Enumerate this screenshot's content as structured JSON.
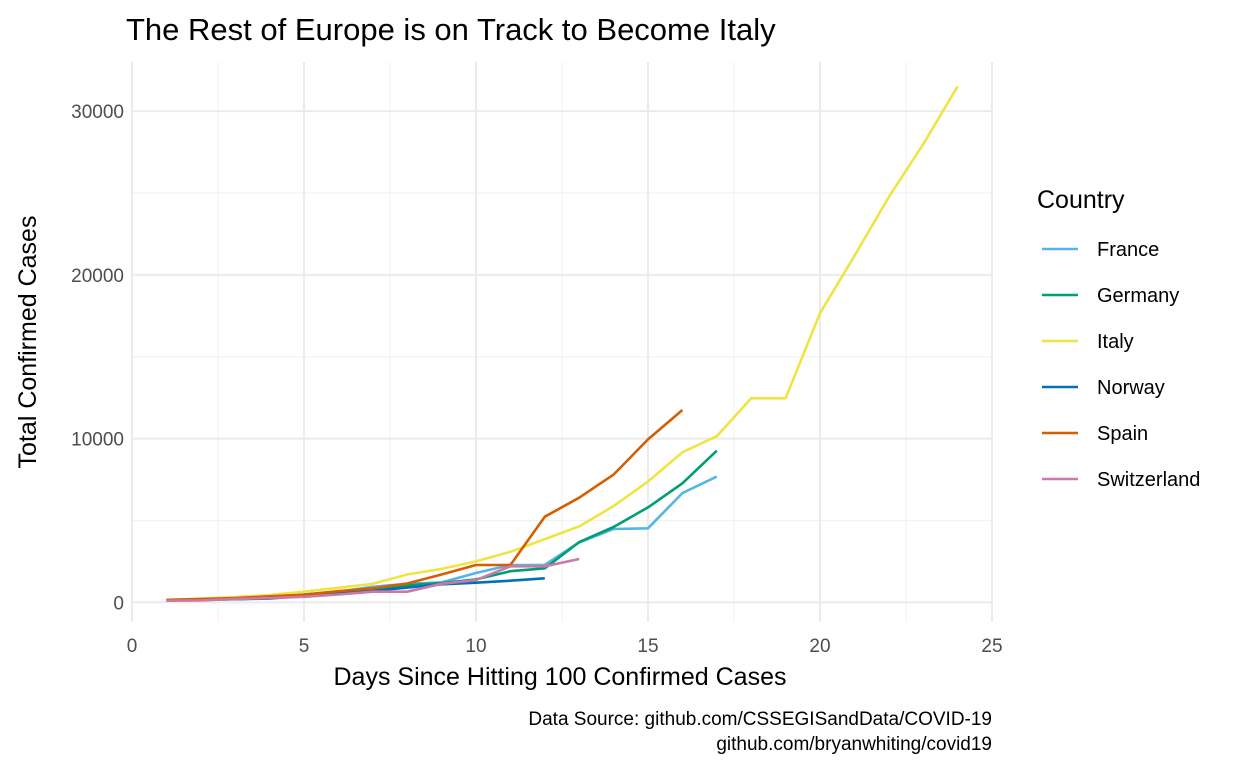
{
  "chart_data": {
    "type": "line",
    "title": "The Rest of Europe is on Track to Become Italy",
    "xlabel": "Days Since Hitting 100 Confirmed Cases",
    "ylabel": "Total Confirmed Cases",
    "xlim": [
      0,
      25
    ],
    "ylim": [
      -1200,
      33000
    ],
    "x_ticks": [
      0,
      5,
      10,
      15,
      20,
      25
    ],
    "x_tick_labels": [
      "0",
      "5",
      "10",
      "15",
      "20",
      "25"
    ],
    "y_ticks": [
      0,
      10000,
      20000,
      30000
    ],
    "y_tick_labels": [
      "0",
      "10000",
      "20000",
      "30000"
    ],
    "grid": true,
    "legend": {
      "title": "Country",
      "position": "right"
    },
    "caption": [
      "Data Source: github.com/CSSEGISandData/COVID-19",
      "github.com/bryanwhiting/covid19"
    ],
    "series": [
      {
        "name": "France",
        "color": "#56B4E9",
        "x": [
          1,
          2,
          3,
          4,
          5,
          6,
          7,
          8,
          9,
          10,
          11,
          12,
          13,
          14,
          15,
          16,
          17
        ],
        "y": [
          130,
          190,
          210,
          290,
          420,
          650,
          950,
          1130,
          1220,
          1790,
          2280,
          2290,
          3660,
          4480,
          4520,
          6670,
          7680
        ]
      },
      {
        "name": "Germany",
        "color": "#009E73",
        "x": [
          1,
          2,
          3,
          4,
          5,
          6,
          7,
          8,
          9,
          10,
          11,
          12,
          13,
          14,
          15,
          16,
          17
        ],
        "y": [
          130,
          160,
          200,
          260,
          480,
          670,
          800,
          1040,
          1180,
          1400,
          1900,
          2080,
          3680,
          4600,
          5800,
          7270,
          9260
        ]
      },
      {
        "name": "Italy",
        "color": "#F0E442",
        "x": [
          1,
          2,
          3,
          4,
          5,
          6,
          7,
          8,
          9,
          10,
          11,
          12,
          13,
          14,
          15,
          16,
          17,
          18,
          19,
          20,
          21,
          22,
          23,
          24
        ],
        "y": [
          155,
          230,
          320,
          450,
          650,
          890,
          1130,
          1700,
          2040,
          2500,
          3090,
          3860,
          4640,
          5880,
          7380,
          9170,
          10150,
          12460,
          12460,
          17660,
          21160,
          24750,
          27980,
          31510
        ]
      },
      {
        "name": "Norway",
        "color": "#0072B2",
        "x": [
          1,
          2,
          3,
          4,
          5,
          6,
          7,
          8,
          9,
          10,
          11,
          12
        ],
        "y": [
          110,
          150,
          190,
          230,
          400,
          600,
          700,
          900,
          1100,
          1200,
          1320,
          1470
        ]
      },
      {
        "name": "Spain",
        "color": "#D55E00",
        "x": [
          1,
          2,
          3,
          4,
          5,
          6,
          7,
          8,
          9,
          10,
          11,
          12,
          13,
          14,
          15,
          16
        ],
        "y": [
          150,
          200,
          260,
          370,
          460,
          680,
          850,
          1150,
          1700,
          2280,
          2280,
          5230,
          6390,
          7800,
          9950,
          11750
        ]
      },
      {
        "name": "Switzerland",
        "color": "#CC79A7",
        "x": [
          1,
          2,
          3,
          4,
          5,
          6,
          7,
          8,
          9,
          10,
          11,
          12,
          13
        ],
        "y": [
          100,
          120,
          210,
          260,
          340,
          480,
          650,
          650,
          1130,
          1360,
          2200,
          2200,
          2650
        ]
      }
    ]
  }
}
